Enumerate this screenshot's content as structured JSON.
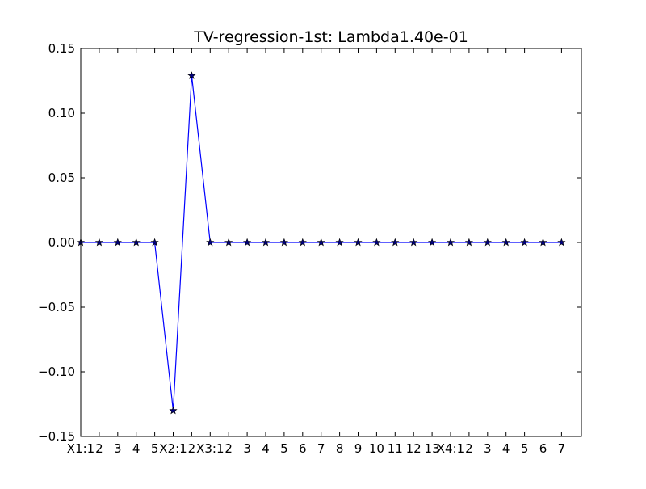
{
  "chart_data": {
    "type": "line",
    "title": "TV-regression-1st: Lambda1.40e-01",
    "xlabel": "",
    "ylabel": "",
    "ylim": [
      -0.15,
      0.15
    ],
    "yticks": [
      0.15,
      0.1,
      0.05,
      0.0,
      -0.05,
      -0.1,
      -0.15
    ],
    "ytick_labels": [
      "0.15",
      "0.10",
      "0.05",
      "0.00",
      "−0.05",
      "−0.10",
      "−0.15"
    ],
    "x_tick_labels": [
      "X1:1",
      "2",
      "3",
      "4",
      "5",
      "X2:1",
      "2",
      "X3:1",
      "2",
      "3",
      "4",
      "5",
      "6",
      "7",
      "8",
      "9",
      "10",
      "11",
      "12",
      "13",
      "X4:1",
      "2",
      "3",
      "4",
      "5",
      "6",
      "7"
    ],
    "grid": false,
    "series": [
      {
        "color": "#0000ff",
        "marker": "star",
        "values": [
          0,
          0,
          0,
          0,
          0,
          -0.13,
          0.129,
          0,
          0,
          0,
          0,
          0,
          0,
          0,
          0,
          0,
          0,
          0,
          0,
          0,
          0,
          0,
          0,
          0,
          0,
          0,
          0
        ]
      }
    ]
  }
}
